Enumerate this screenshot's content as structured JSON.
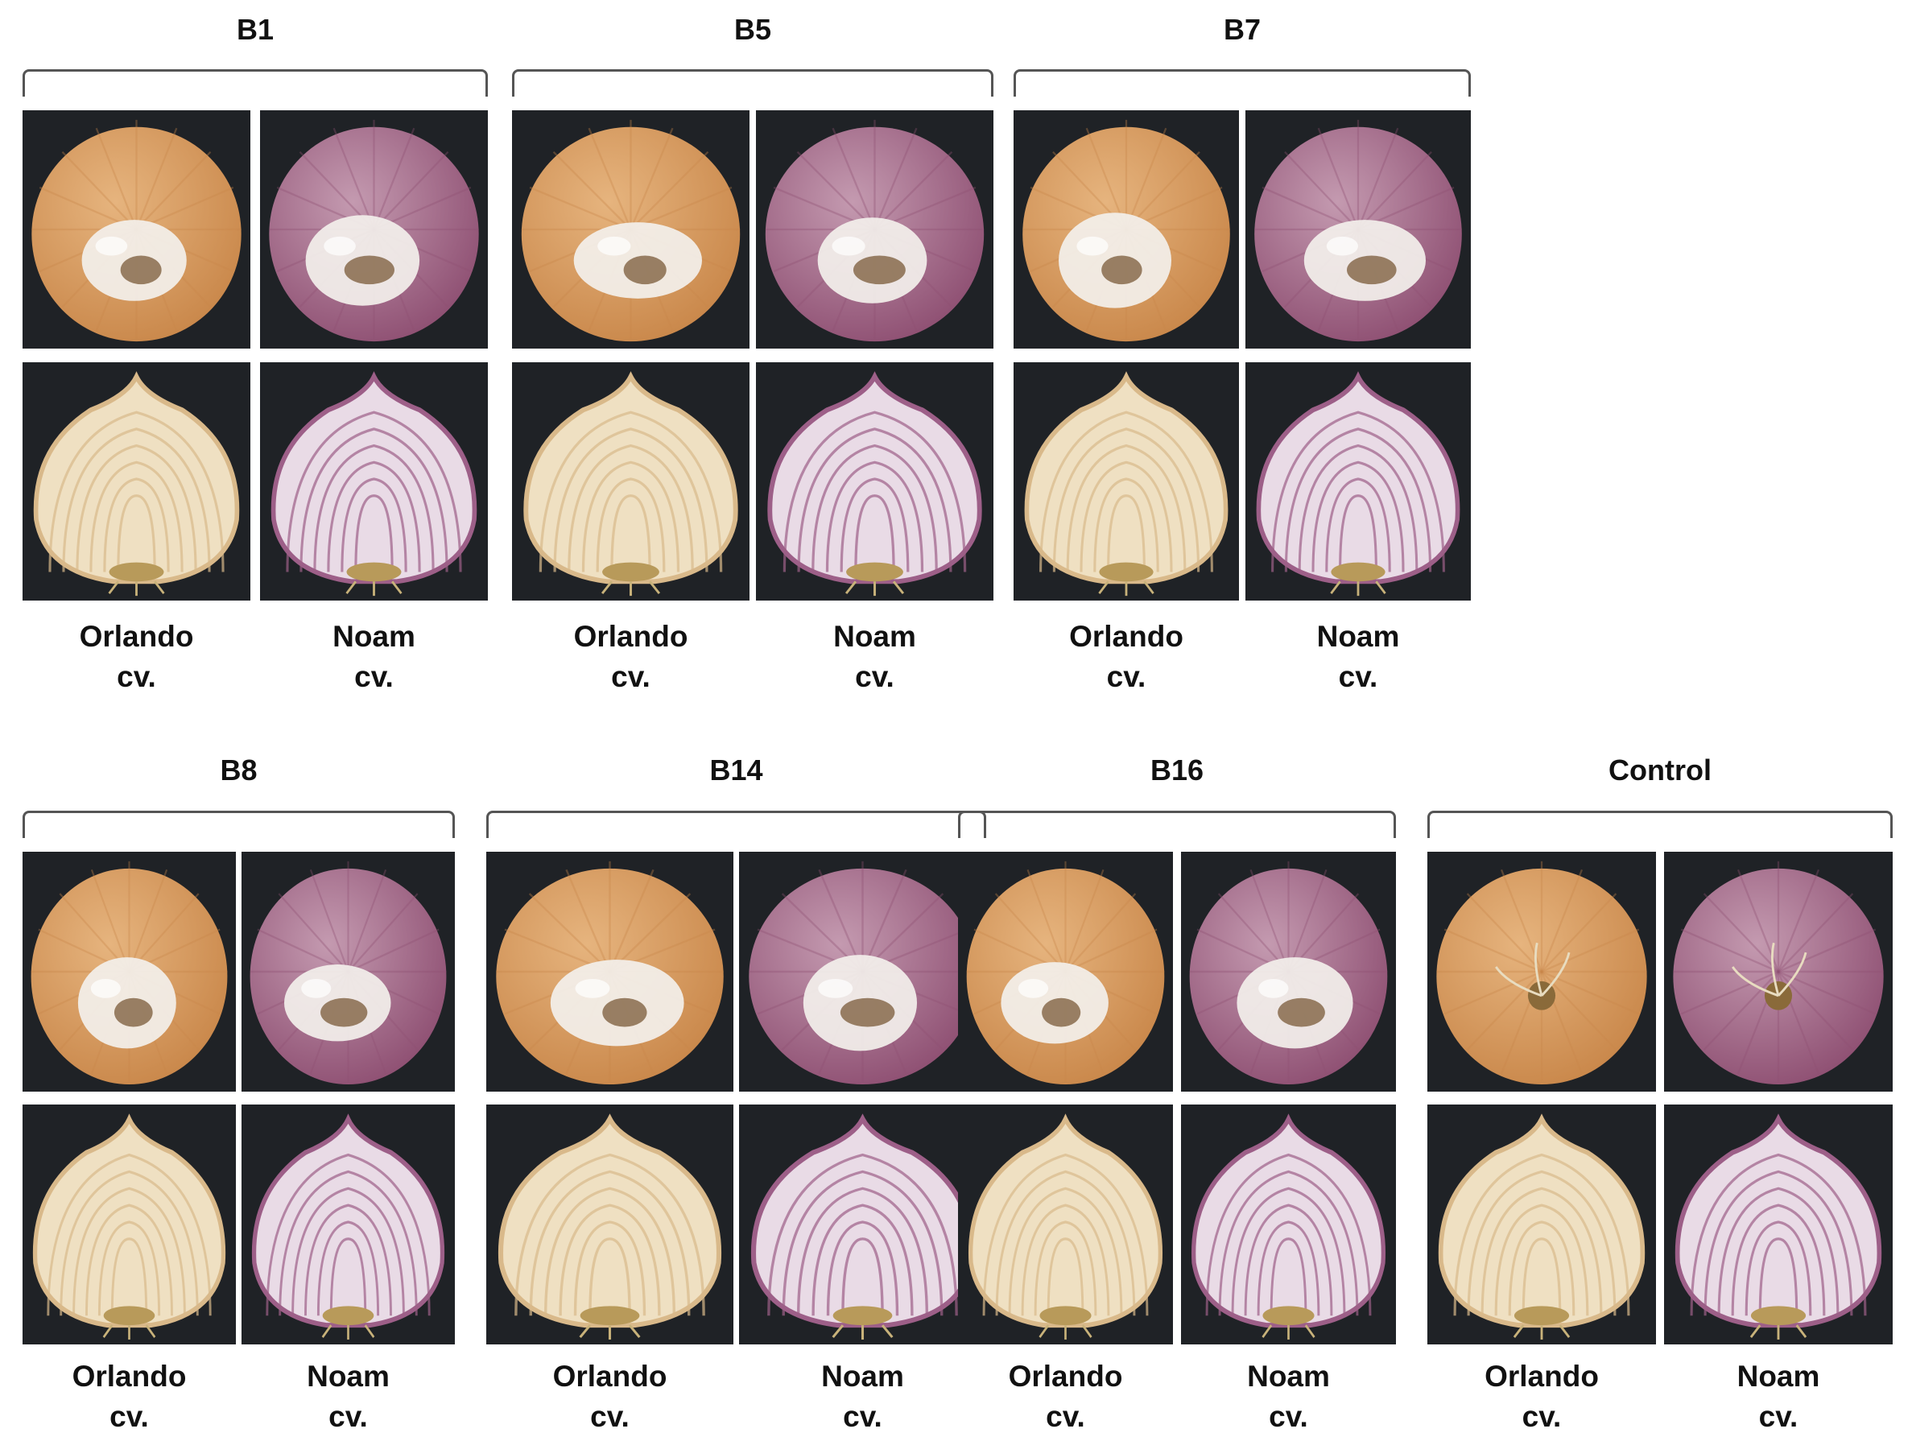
{
  "colors": {
    "photo_background": "#1f2226",
    "orlando_skin": "#c9874a",
    "orlando_flesh": "#efe0c2",
    "noam_skin": "#8e4f72",
    "noam_flesh": "#e9dbe6",
    "mycelium": "#f3f0ec",
    "rot": "#7a5a38"
  },
  "groups": [
    {
      "title": "B1",
      "panels": [
        {
          "cultivar": "Orlando",
          "suffix": "cv.",
          "whole_icon": "infected-orlando-onion-icon",
          "section_icon": "orlando-onion-cross-section-icon"
        },
        {
          "cultivar": "Noam",
          "suffix": "cv.",
          "whole_icon": "infected-noam-onion-icon",
          "section_icon": "noam-onion-cross-section-icon"
        }
      ]
    },
    {
      "title": "B5",
      "panels": [
        {
          "cultivar": "Orlando",
          "suffix": "cv."
        },
        {
          "cultivar": "Noam",
          "suffix": "cv."
        }
      ]
    },
    {
      "title": "B7",
      "panels": [
        {
          "cultivar": "Orlando",
          "suffix": "cv."
        },
        {
          "cultivar": "Noam",
          "suffix": "cv."
        }
      ]
    },
    {
      "title": "B8",
      "panels": [
        {
          "cultivar": "Orlando",
          "suffix": "cv."
        },
        {
          "cultivar": "Noam",
          "suffix": "cv."
        }
      ]
    },
    {
      "title": "B14",
      "panels": [
        {
          "cultivar": "Orlando",
          "suffix": "cv."
        },
        {
          "cultivar": "Noam",
          "suffix": "cv."
        }
      ]
    },
    {
      "title": "B16",
      "panels": [
        {
          "cultivar": "Orlando",
          "suffix": "cv."
        },
        {
          "cultivar": "Noam",
          "suffix": "cv."
        }
      ]
    },
    {
      "title": "Control",
      "panels": [
        {
          "cultivar": "Orlando",
          "suffix": "cv."
        },
        {
          "cultivar": "Noam",
          "suffix": "cv."
        }
      ]
    }
  ]
}
